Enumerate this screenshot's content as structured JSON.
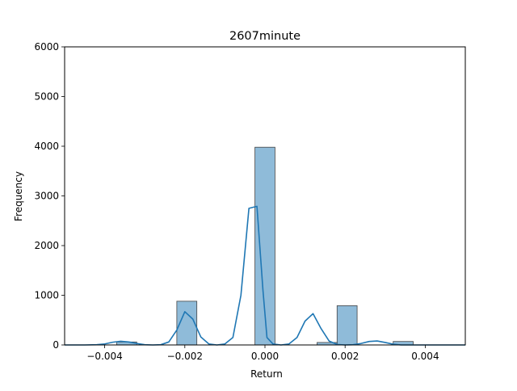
{
  "chart_data": {
    "type": "bar",
    "title": "2607minute",
    "xlabel": "Return",
    "ylabel": "Frequency",
    "xlim": [
      -0.005,
      0.005
    ],
    "ylim": [
      0,
      6000
    ],
    "x_ticks": [
      {
        "value": -0.004,
        "label": "−0.004"
      },
      {
        "value": -0.002,
        "label": "−0.002"
      },
      {
        "value": 0.0,
        "label": "0.000"
      },
      {
        "value": 0.002,
        "label": "0.002"
      },
      {
        "value": 0.004,
        "label": "0.004"
      }
    ],
    "y_ticks": [
      {
        "value": 0,
        "label": "0"
      },
      {
        "value": 1000,
        "label": "1000"
      },
      {
        "value": 2000,
        "label": "2000"
      },
      {
        "value": 3000,
        "label": "3000"
      },
      {
        "value": 4000,
        "label": "4000"
      },
      {
        "value": 5000,
        "label": "5000"
      },
      {
        "value": 6000,
        "label": "6000"
      }
    ],
    "bin_width": 0.0005,
    "bins": [
      {
        "x0": -0.0037,
        "x1": -0.0032,
        "count": 60
      },
      {
        "x0": -0.0022,
        "x1": -0.0017,
        "count": 880
      },
      {
        "x0": -0.00025,
        "x1": 0.00025,
        "count": 3980
      },
      {
        "x0": 0.0013,
        "x1": 0.0018,
        "count": 50
      },
      {
        "x0": 0.0018,
        "x1": 0.0023,
        "count": 790
      },
      {
        "x0": 0.0032,
        "x1": 0.0037,
        "count": 70
      }
    ],
    "kde": {
      "x": [
        -0.005,
        -0.0045,
        -0.0042,
        -0.004,
        -0.0038,
        -0.0036,
        -0.0034,
        -0.0032,
        -0.003,
        -0.0028,
        -0.0026,
        -0.0024,
        -0.0022,
        -0.002,
        -0.0018,
        -0.0016,
        -0.0014,
        -0.0012,
        -0.001,
        -0.0008,
        -0.0006,
        -0.0004,
        -0.0002,
        -5e-05,
        5e-05,
        0.0002,
        0.0004,
        0.0006,
        0.0008,
        0.001,
        0.0012,
        0.0014,
        0.0016,
        0.0018,
        0.002,
        0.0022,
        0.0024,
        0.0026,
        0.0028,
        0.003,
        0.0032,
        0.0034,
        0.0036,
        0.0038,
        0.004,
        0.0042,
        0.0045,
        0.005
      ],
      "y": [
        0,
        0,
        5,
        20,
        55,
        75,
        60,
        30,
        5,
        0,
        5,
        60,
        300,
        670,
        520,
        160,
        20,
        0,
        20,
        150,
        1000,
        2750,
        2790,
        1100,
        150,
        20,
        0,
        20,
        150,
        480,
        630,
        330,
        80,
        10,
        0,
        5,
        30,
        70,
        80,
        50,
        15,
        0,
        0,
        0,
        0,
        0,
        0,
        0
      ]
    },
    "colors": {
      "bar_fill": "#1f77b4",
      "bar_opacity": 0.5,
      "bar_edge": "#444444",
      "kde_line": "#1f77b4"
    },
    "grid": false,
    "legend": "none"
  }
}
